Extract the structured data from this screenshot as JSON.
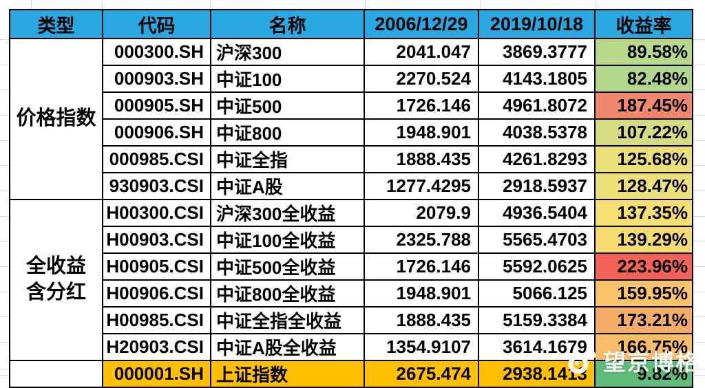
{
  "sheet": {
    "colors": {
      "header_bg": "#28A7E1",
      "highlight_row_bg": "#FFC000",
      "border": "#000000",
      "min_return_green": "#5FBB78",
      "max_return_red": "#F4625A"
    },
    "header": {
      "labels": [
        "类型",
        "代码",
        "名称",
        "2006/12/29",
        "2019/10/18",
        "收益率"
      ]
    },
    "groups": [
      {
        "label": "价格指数"
      },
      {
        "label": "全收益\n含分红"
      }
    ],
    "rows": [
      {
        "code": "000300.SH",
        "name": "沪深300",
        "v_start": "2041.047",
        "v_end": "3869.3777",
        "ret": "89.58%",
        "ret_bg": "#B7D88A",
        "bg": ""
      },
      {
        "code": "000903.SH",
        "name": "中证100",
        "v_start": "2270.524",
        "v_end": "4143.1805",
        "ret": "82.48%",
        "ret_bg": "#B2D68C",
        "bg": ""
      },
      {
        "code": "000905.SH",
        "name": "中证500",
        "v_start": "1726.146",
        "v_end": "4961.8072",
        "ret": "187.45%",
        "ret_bg": "#F0876F",
        "bg": ""
      },
      {
        "code": "000906.SH",
        "name": "中证800",
        "v_start": "1948.901",
        "v_end": "4038.5378",
        "ret": "107.22%",
        "ret_bg": "#D5DB80",
        "bg": ""
      },
      {
        "code": "000985.CSI",
        "name": "中证全指",
        "v_start": "1888.435",
        "v_end": "4261.8293",
        "ret": "125.68%",
        "ret_bg": "#EBDF7A",
        "bg": ""
      },
      {
        "code": "930903.CSI",
        "name": "中证A股",
        "v_start": "1277.4295",
        "v_end": "2918.5937",
        "ret": "128.47%",
        "ret_bg": "#EDE078",
        "bg": ""
      },
      {
        "code": "H00300.CSI",
        "name": "沪深300全收益",
        "v_start": "2079.9",
        "v_end": "4936.5404",
        "ret": "137.35%",
        "ret_bg": "#F6DE72",
        "bg": ""
      },
      {
        "code": "H00903.CSI",
        "name": "中证100全收益",
        "v_start": "2325.788",
        "v_end": "5565.4703",
        "ret": "139.29%",
        "ret_bg": "#F6DC70",
        "bg": ""
      },
      {
        "code": "H00905.CSI",
        "name": "中证500全收益",
        "v_start": "1726.146",
        "v_end": "5592.0625",
        "ret": "223.96%",
        "ret_bg": "#F4625A",
        "bg": ""
      },
      {
        "code": "H00906.CSI",
        "name": "中证800全收益",
        "v_start": "1948.901",
        "v_end": "5066.125",
        "ret": "159.95%",
        "ret_bg": "#F9C369",
        "bg": ""
      },
      {
        "code": "H00985.CSI",
        "name": "中证全指全收益",
        "v_start": "1888.435",
        "v_end": "5159.3384",
        "ret": "173.21%",
        "ret_bg": "#F5AC65",
        "bg": ""
      },
      {
        "code": "H20903.CSI",
        "name": "中证A股全收益",
        "v_start": "1354.9107",
        "v_end": "3614.1679",
        "ret": "166.75%",
        "ret_bg": "#F9BC67",
        "bg": ""
      },
      {
        "code": "000001.SH",
        "name": "上证指数",
        "v_start": "2675.474",
        "v_end": "2938.1413",
        "ret": "9.82%",
        "ret_bg": "#5FBB78",
        "bg": "#FFC000"
      }
    ]
  },
  "watermark": {
    "text": "望京博格",
    "icon": "weibo-icon"
  }
}
